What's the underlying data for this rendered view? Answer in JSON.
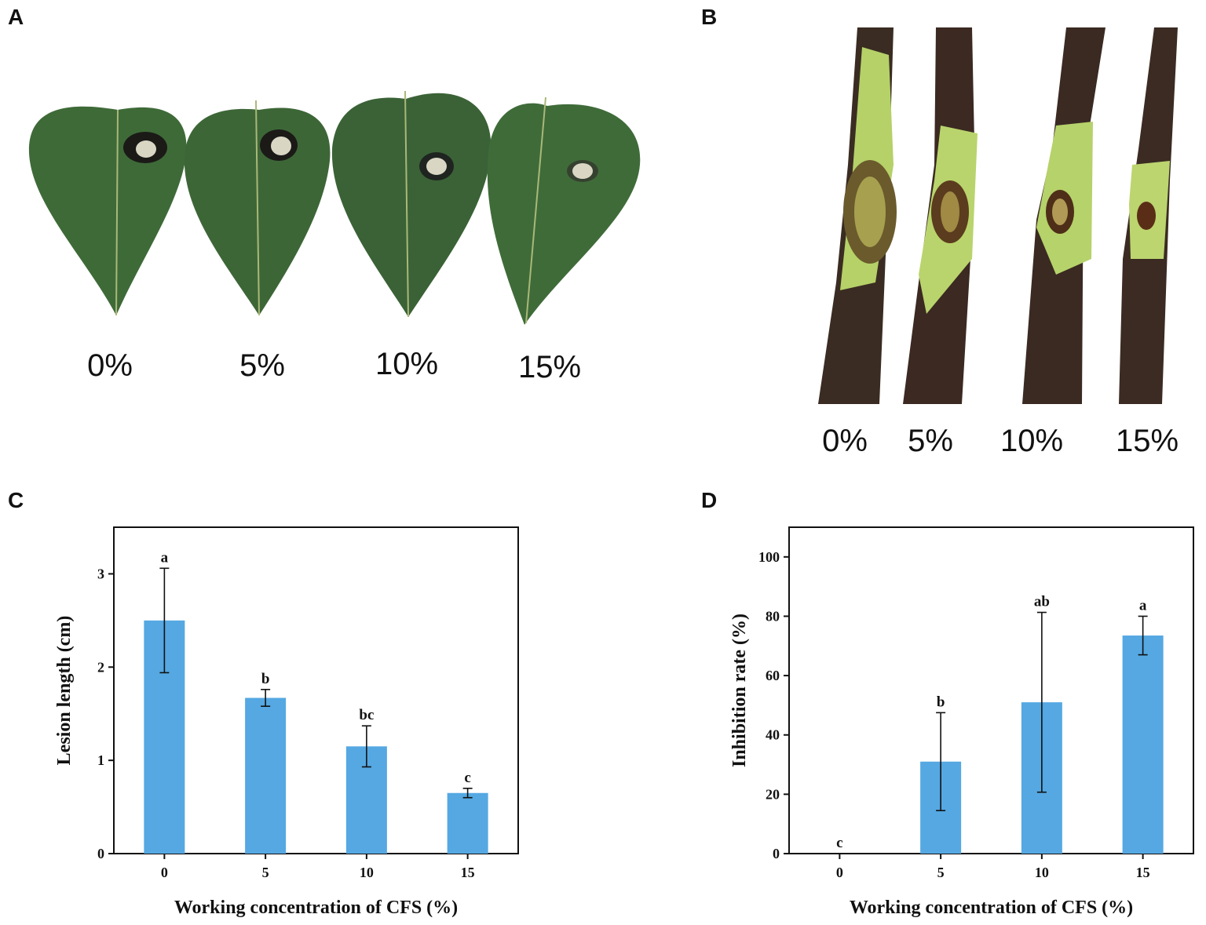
{
  "panels": {
    "a": {
      "letter": "A",
      "labels": [
        "0%",
        "5%",
        "10%",
        "15%"
      ]
    },
    "b": {
      "letter": "B",
      "labels": [
        "0%",
        "5%",
        "10%",
        "15%"
      ]
    },
    "c": {
      "letter": "C"
    },
    "d": {
      "letter": "D"
    }
  },
  "colors": {
    "bar": "#55a8e2",
    "leaf": "#3f6a3a",
    "leaf_dark": "#2d4e2b",
    "lesion": "#1b1a17",
    "mycelium": "#d9d6c4",
    "stem": "#3b2a22",
    "bark_green": "#b8d36a"
  },
  "chart_data": [
    {
      "type": "bar",
      "id": "C",
      "categories": [
        "0",
        "5",
        "10",
        "15"
      ],
      "values": [
        2.5,
        1.67,
        1.15,
        0.65
      ],
      "errors": [
        0.56,
        0.09,
        0.22,
        0.05
      ],
      "significance": [
        "a",
        "b",
        "bc",
        "c"
      ],
      "xlabel": "Working concentration of CFS (%)",
      "ylabel": "Lesion length (cm)",
      "ylim": [
        0,
        3.5
      ],
      "yticks": [
        "0",
        "1",
        "2",
        "3"
      ],
      "ytick_values": [
        0,
        1,
        2,
        3
      ]
    },
    {
      "type": "bar",
      "id": "D",
      "categories": [
        "0",
        "5",
        "10",
        "15"
      ],
      "values": [
        0,
        31,
        51,
        73.5
      ],
      "errors": [
        0,
        16.5,
        30.3,
        6.5
      ],
      "significance": [
        "c",
        "b",
        "ab",
        "a"
      ],
      "xlabel": "Working concentration of CFS (%)",
      "ylabel": "Inhibition rate (%)",
      "ylim": [
        0,
        110
      ],
      "yticks": [
        "0",
        "20",
        "40",
        "60",
        "80",
        "100"
      ],
      "ytick_values": [
        0,
        20,
        40,
        60,
        80,
        100
      ]
    }
  ]
}
